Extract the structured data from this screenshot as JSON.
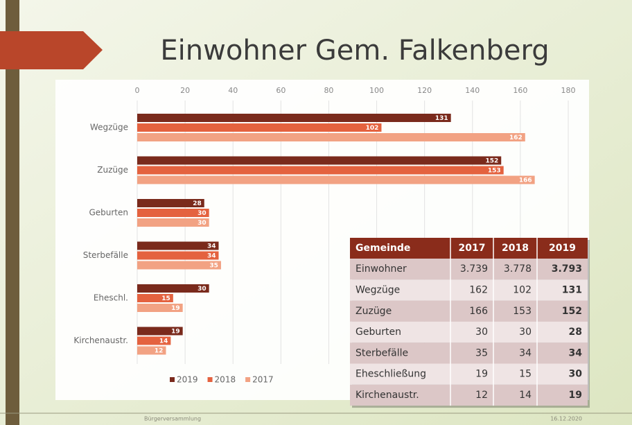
{
  "chart_data": {
    "type": "bar",
    "orientation": "horizontal",
    "title": "Einwohner Gem. Falkenberg",
    "categories": [
      "Wegzüge",
      "Zuzüge",
      "Geburten",
      "Sterbefälle",
      "Eheschl.",
      "Kirchenaustr."
    ],
    "series": [
      {
        "name": "2019",
        "color": "#7a2a1c",
        "values": [
          131,
          152,
          28,
          34,
          30,
          19
        ]
      },
      {
        "name": "2018",
        "color": "#e4623f",
        "values": [
          102,
          153,
          30,
          34,
          15,
          14
        ]
      },
      {
        "name": "2017",
        "color": "#f2a283",
        "values": [
          162,
          166,
          30,
          35,
          19,
          12
        ]
      }
    ],
    "xlim": [
      0,
      180
    ],
    "xticks": [
      0,
      20,
      40,
      60,
      80,
      100,
      120,
      140,
      160,
      180
    ],
    "grid": true,
    "legend": "bottom"
  },
  "table": {
    "header": [
      "Gemeinde",
      "2017",
      "2018",
      "2019"
    ],
    "rows": [
      [
        "Einwohner",
        "3.739",
        "3.778",
        "3.793"
      ],
      [
        "Wegzüge",
        "162",
        "102",
        "131"
      ],
      [
        "Zuzüge",
        "166",
        "153",
        "152"
      ],
      [
        "Geburten",
        "30",
        "30",
        "28"
      ],
      [
        "Sterbefälle",
        "35",
        "34",
        "34"
      ],
      [
        "Eheschließung",
        "19",
        "15",
        "30"
      ],
      [
        "Kirchenaustr.",
        "12",
        "14",
        "19"
      ]
    ]
  },
  "footer": {
    "left": "Bürgerversammlung",
    "right": "16.12.2020"
  }
}
